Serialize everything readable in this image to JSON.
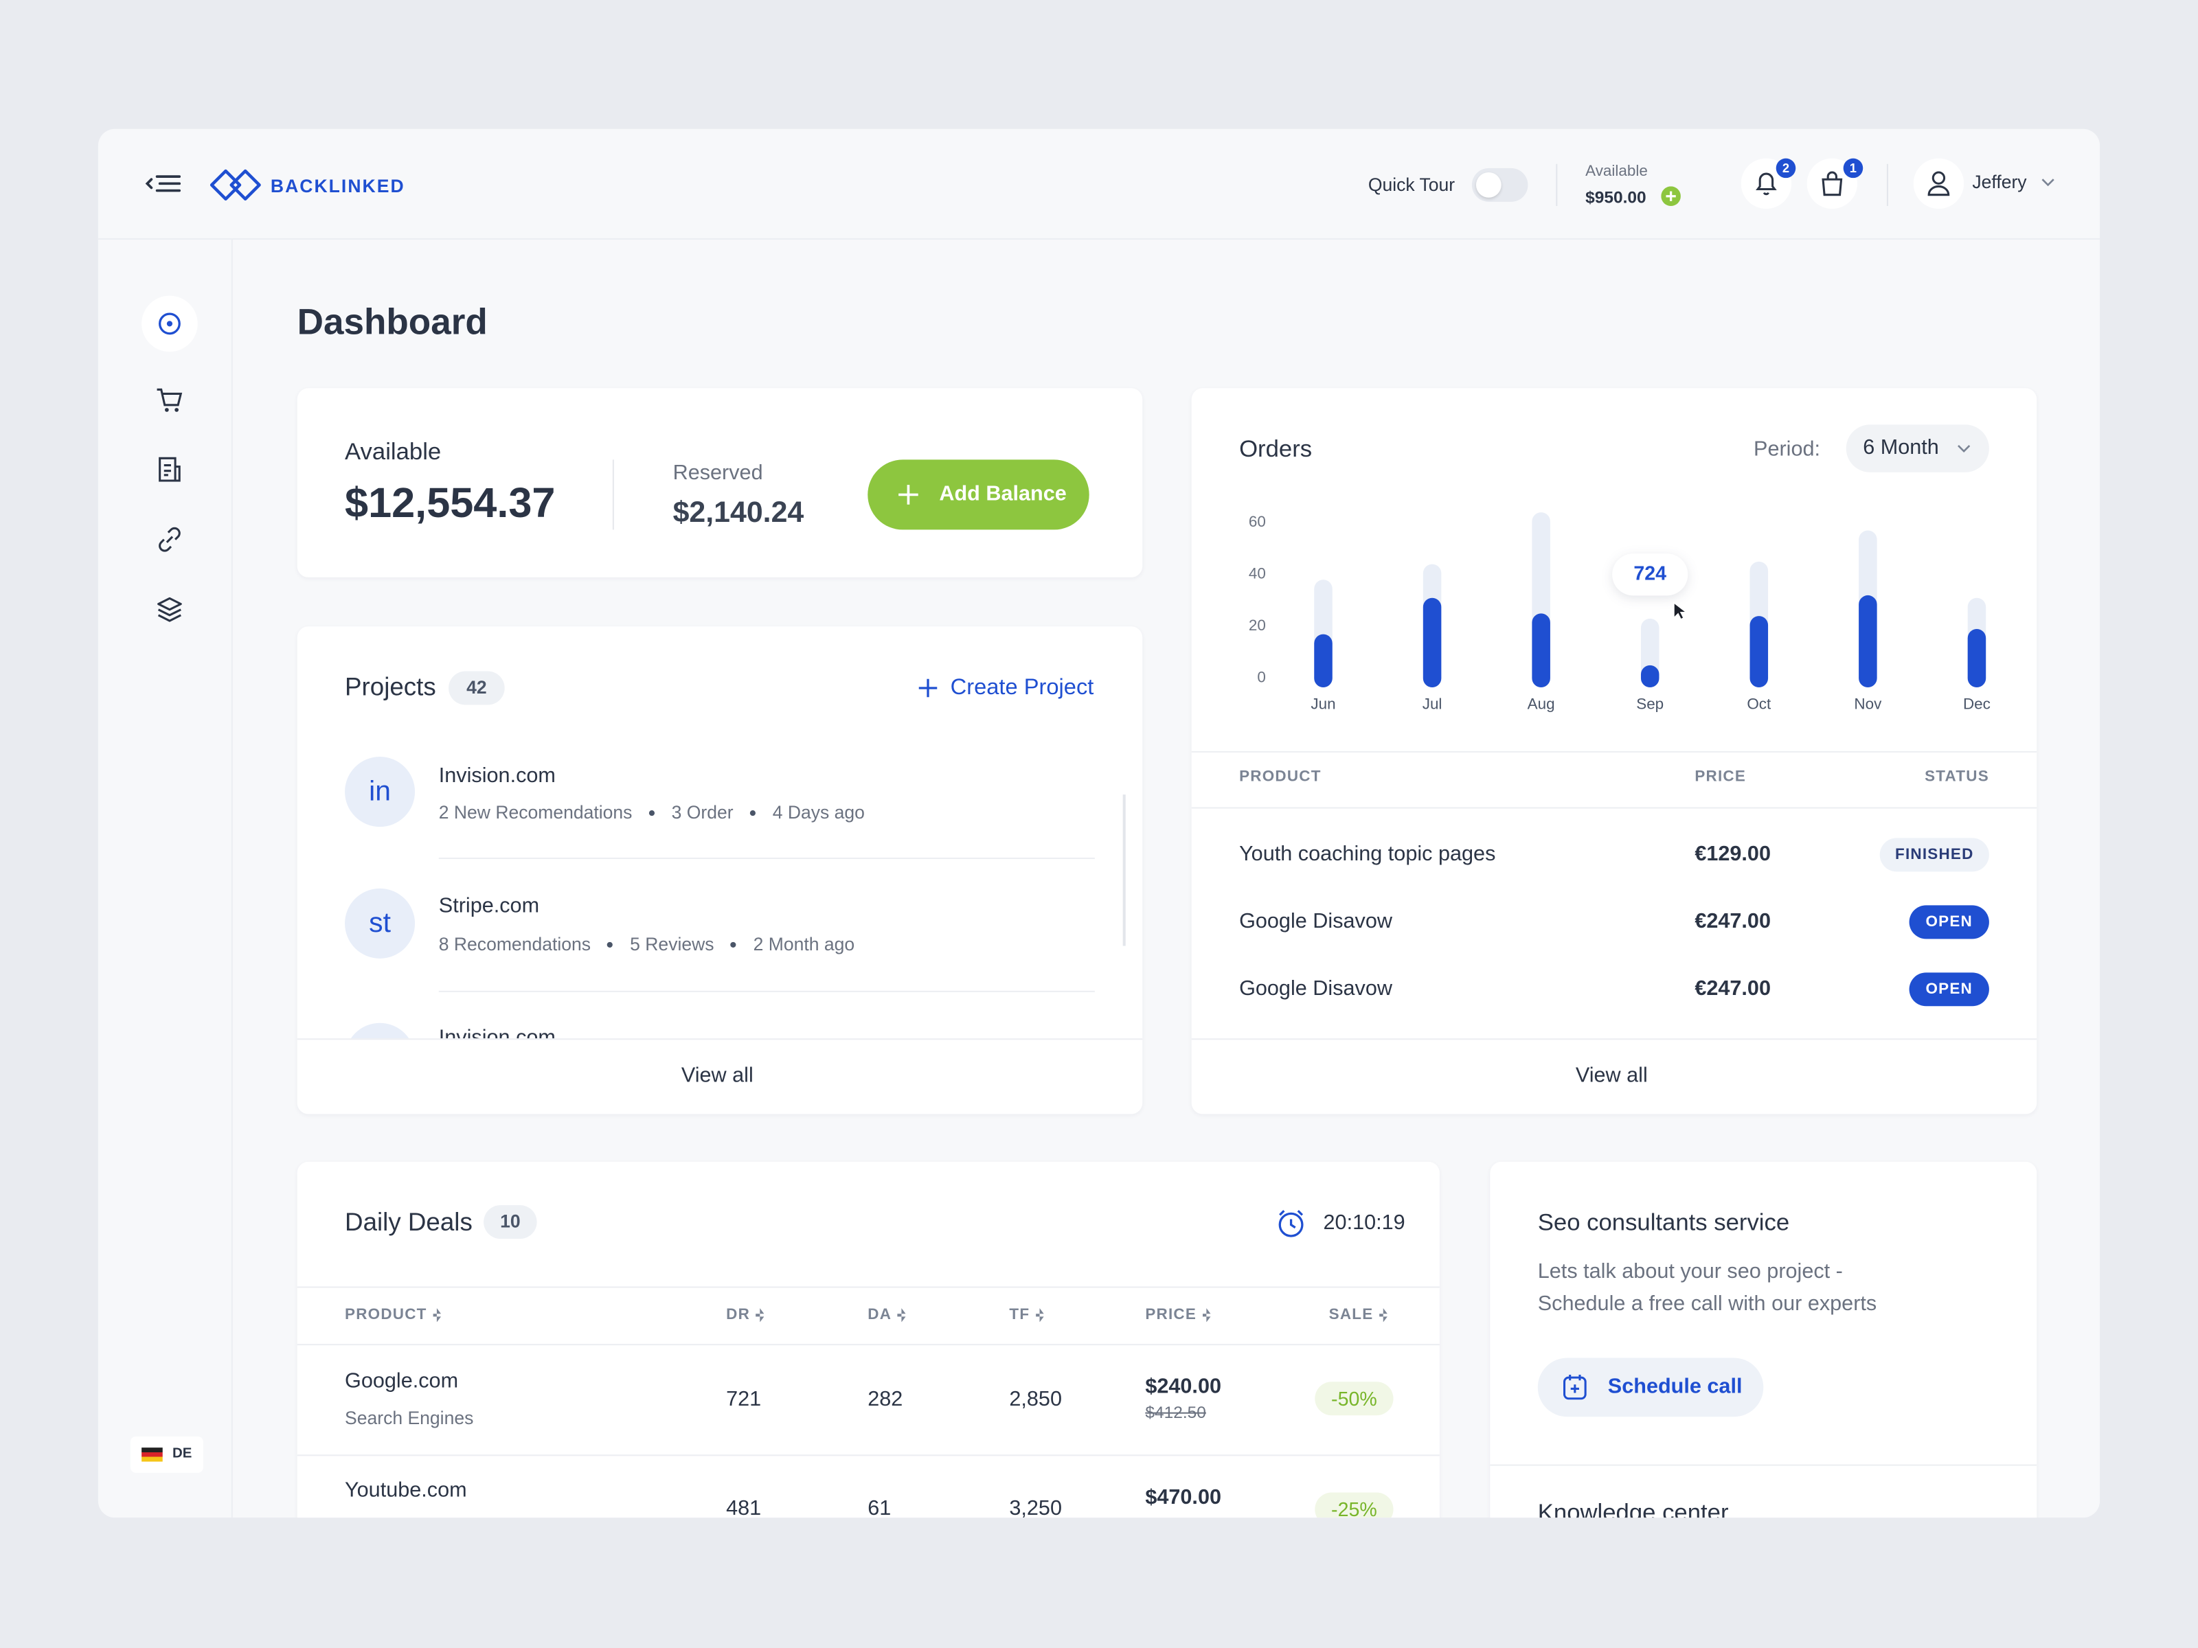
{
  "header": {
    "brand": "BACKLINKED",
    "quick_tour": "Quick Tour",
    "available_label": "Available",
    "available_amount": "$950.00",
    "notifications": "2",
    "cart": "1",
    "user": "Jeffery"
  },
  "sidebar": {
    "language": "DE"
  },
  "page_title": "Dashboard",
  "balance": {
    "available_label": "Available",
    "available_amount": "$12,554.37",
    "reserved_label": "Reserved",
    "reserved_amount": "$2,140.24",
    "add_button": "Add Balance"
  },
  "projects": {
    "title": "Projects",
    "count": "42",
    "create": "Create Project",
    "items": [
      {
        "avatar": "in",
        "name": "Invision.com",
        "meta": [
          "2 New Recomendations",
          "3 Order",
          "4 Days ago"
        ]
      },
      {
        "avatar": "st",
        "name": "Stripe.com",
        "meta": [
          "8 Recomendations",
          "5 Reviews",
          "2 Month ago"
        ]
      },
      {
        "name": "Invision.com"
      }
    ],
    "view_all": "View all"
  },
  "orders": {
    "title": "Orders",
    "period_label": "Period:",
    "period": "6 Month",
    "chart_data": {
      "type": "bar",
      "categories": [
        "Jun",
        "Jul",
        "Aug",
        "Sep",
        "Oct",
        "Nov",
        "Dec"
      ],
      "series": [
        {
          "color": "#e9eef7",
          "values": [
            38,
            44,
            64,
            23,
            45,
            57,
            31
          ]
        },
        {
          "color": "#1f4fd1",
          "values": [
            17,
            31,
            25,
            5,
            24,
            32,
            19
          ]
        }
      ],
      "ylim": [
        0,
        65
      ],
      "yticks": [
        0,
        20,
        40,
        60
      ],
      "tooltip": "724"
    },
    "table": {
      "headers": [
        "PRODUCT",
        "PRICE",
        "STATUS"
      ],
      "rows": [
        [
          "Youth coaching topic pages",
          "€129.00",
          "FINISHED"
        ],
        [
          "Google Disavow",
          "€247.00",
          "OPEN"
        ],
        [
          "Google Disavow",
          "€247.00",
          "OPEN"
        ]
      ]
    },
    "view_all": "View all"
  },
  "deals": {
    "title": "Daily Deals",
    "count": "10",
    "timer": "20:10:19",
    "headers": [
      "PRODUCT",
      "DR",
      "DA",
      "TF",
      "PRICE",
      "SALE"
    ],
    "rows": [
      {
        "product": "Google.com",
        "category": "Search Engines",
        "dr": "721",
        "da": "282",
        "tf": "2,850",
        "price": "$240.00",
        "old_price": "$412.50",
        "sale": "-50%"
      },
      {
        "product": "Youtube.com",
        "dr": "481",
        "da": "61",
        "tf": "3,250",
        "price": "$470.00",
        "sale": "-25%"
      }
    ]
  },
  "seo": {
    "title": "Seo consultants service",
    "text": [
      "Lets talk about your seo project -",
      "Schedule a free call with our experts"
    ],
    "button": "Schedule call"
  },
  "knowledge": {
    "title": "Knowledge center"
  }
}
